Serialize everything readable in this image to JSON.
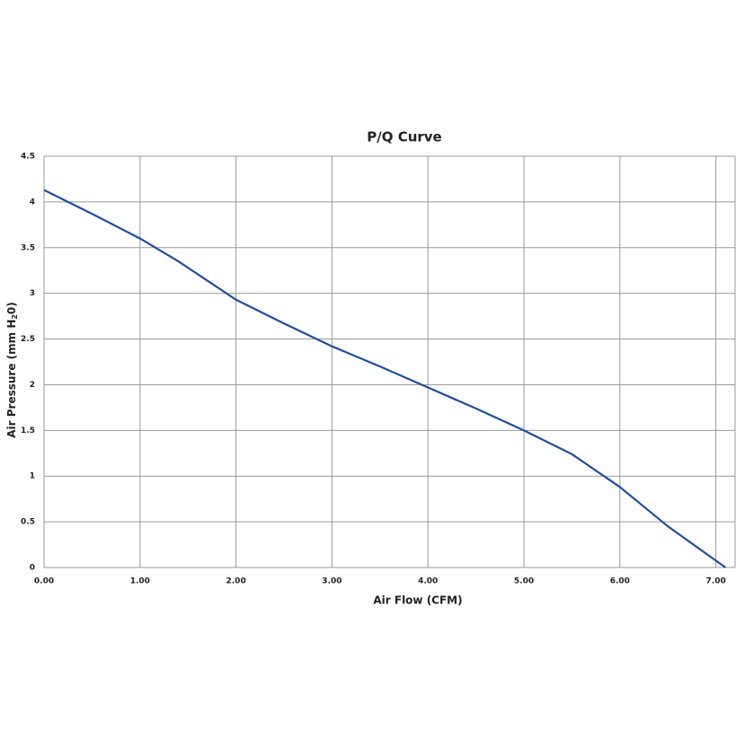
{
  "chart_data": {
    "type": "line",
    "title": "P/Q Curve",
    "xlabel": "Air Flow (CFM)",
    "ylabel": {
      "text": "Air Pressure (mm H",
      "sub": "2",
      "end": "0)"
    },
    "x": [
      0,
      0.5,
      1.0,
      1.4,
      2.0,
      2.5,
      3.0,
      3.5,
      4.0,
      4.5,
      5.0,
      5.5,
      6.0,
      6.5,
      7.1
    ],
    "series": [
      {
        "color": "#1f4ea0",
        "values": [
          4.13,
          3.87,
          3.6,
          3.35,
          2.93,
          2.67,
          2.42,
          2.2,
          1.97,
          1.74,
          1.5,
          1.24,
          0.88,
          0.45,
          0
        ]
      }
    ],
    "xlim": [
      0,
      7.2
    ],
    "ylim": [
      0,
      4.5
    ],
    "xticks": [
      {
        "value": 0,
        "label": "0.00"
      },
      {
        "value": 1,
        "label": "1.00"
      },
      {
        "value": 2,
        "label": "2.00"
      },
      {
        "value": 3,
        "label": "3.00"
      },
      {
        "value": 4,
        "label": "4.00"
      },
      {
        "value": 5,
        "label": "5.00"
      },
      {
        "value": 6,
        "label": "6.00"
      },
      {
        "value": 7,
        "label": "7.00"
      }
    ],
    "yticks": [
      0,
      0.5,
      1,
      1.5,
      2,
      2.5,
      3,
      3.5,
      4,
      4.5
    ],
    "grid": true
  }
}
